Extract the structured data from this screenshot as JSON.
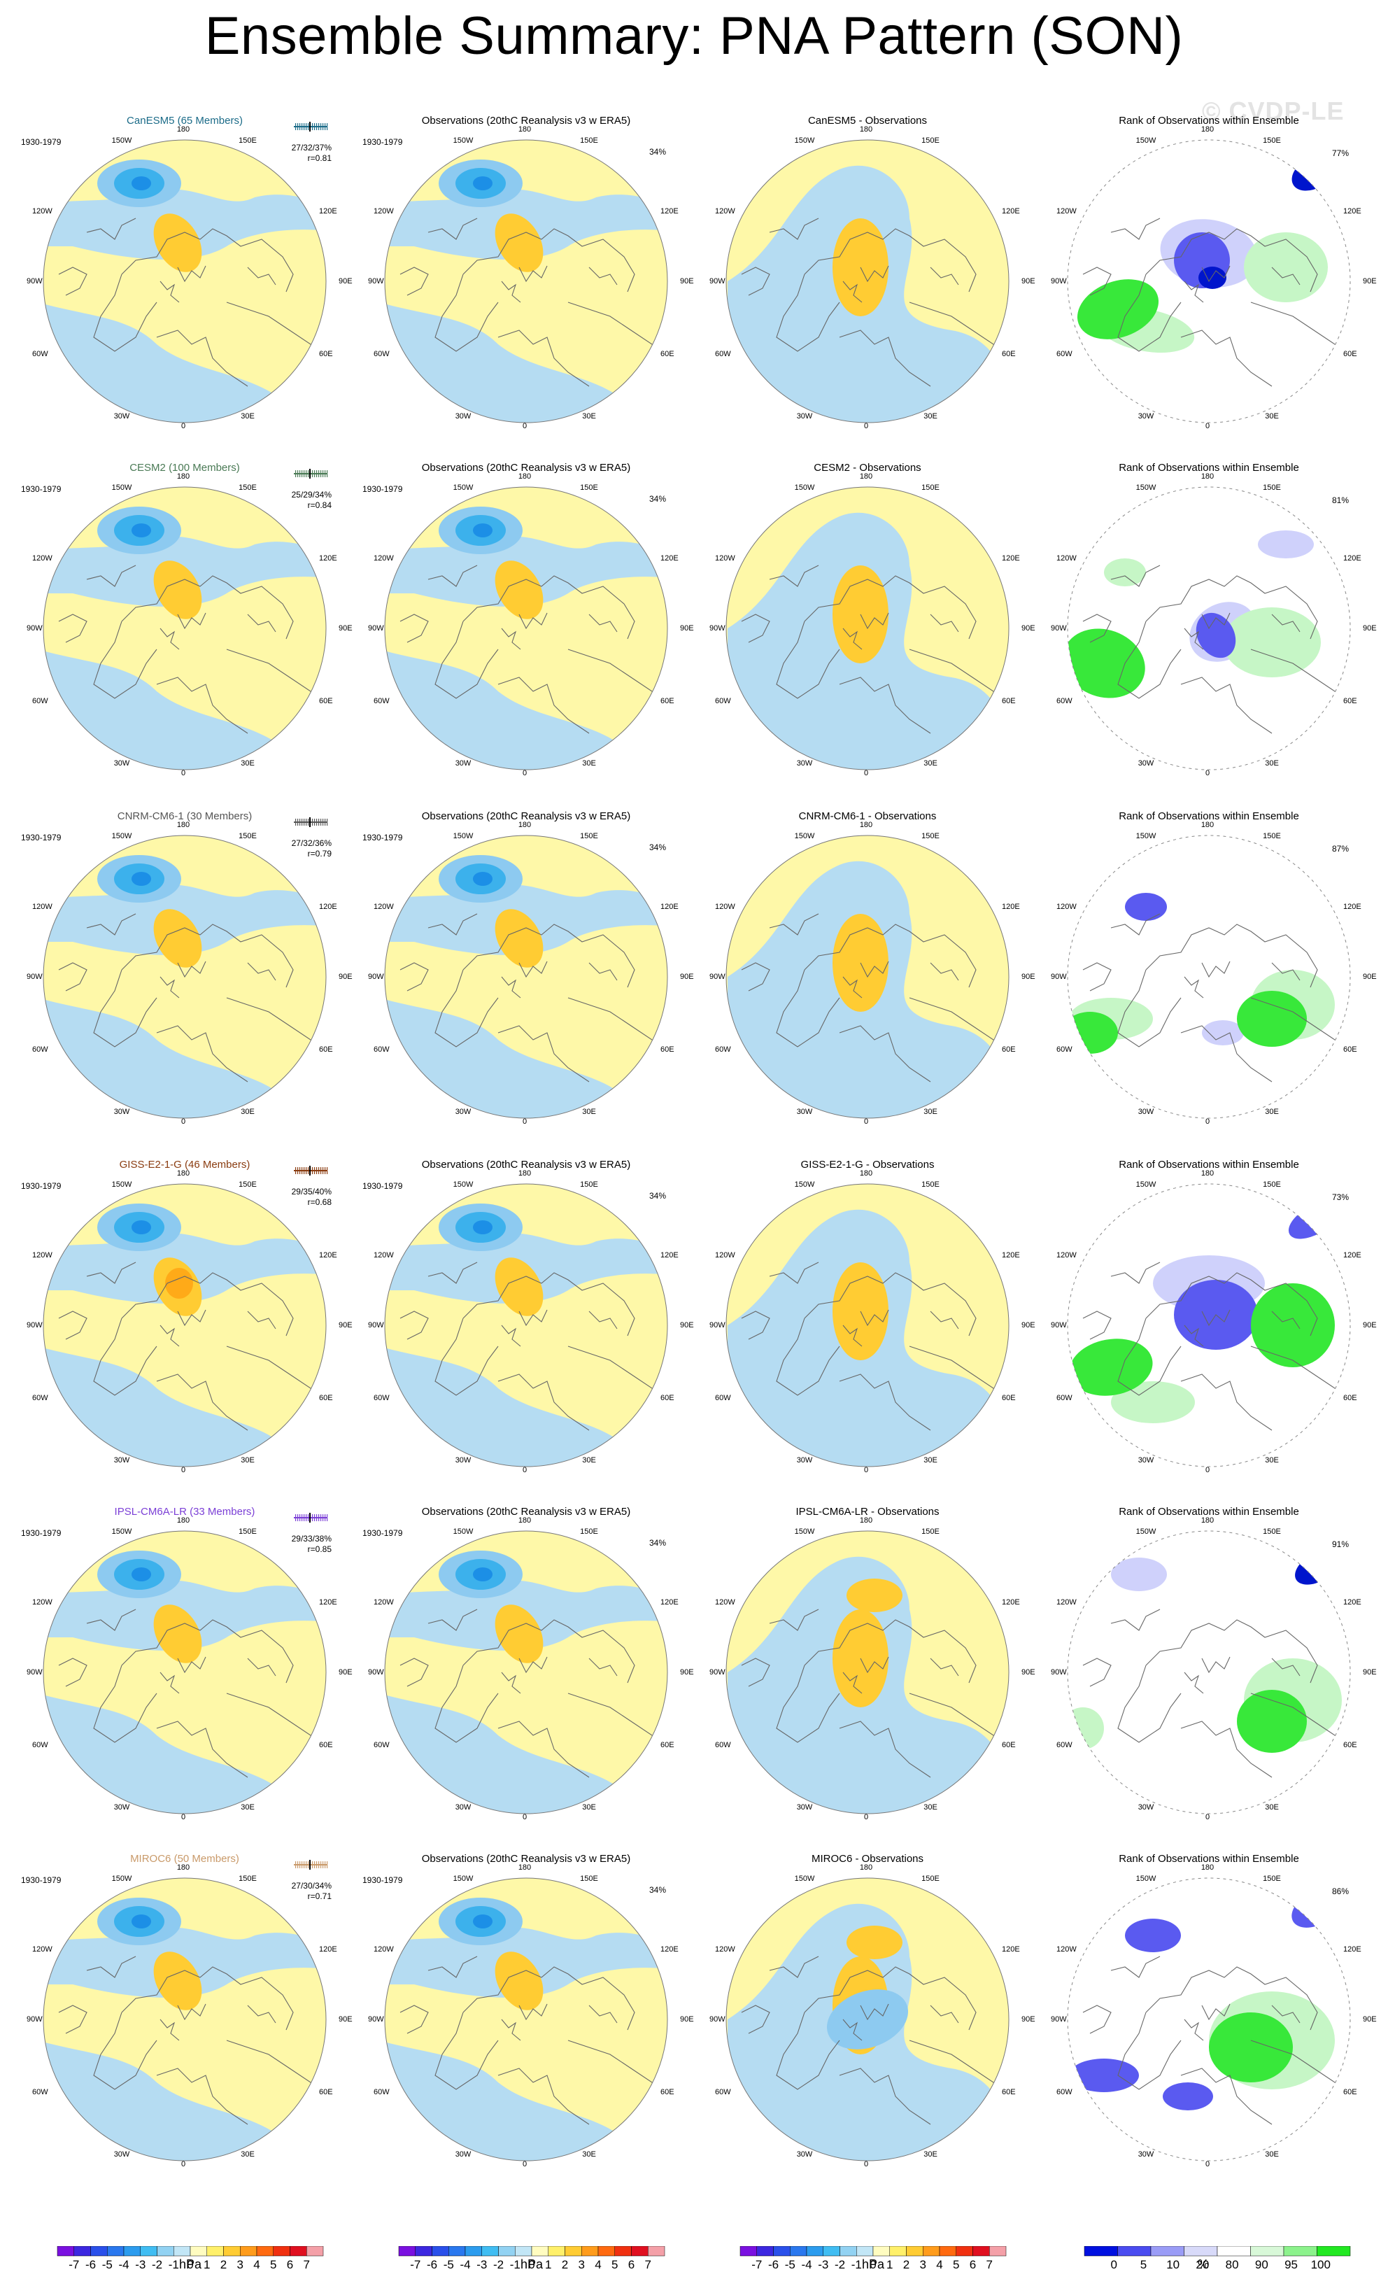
{
  "title": "Ensemble Summary: PNA Pattern (SON)",
  "watermark": "© CVDP-LE",
  "colors": {
    "neg1": "#b5dcf2",
    "neg2": "#8dcaf0",
    "neg3": "#3cb1ec",
    "neg4": "#1c8fe6",
    "pos1": "#fef8a8",
    "pos2": "#ffcc33",
    "pos3": "#ffaa18",
    "pos4": "#ff8a10",
    "rank_blue_dark": "#0015cc",
    "rank_blue": "#5a5af0",
    "rank_blue_light": "#cfd1fb",
    "rank_green": "#38e83a",
    "rank_green_light": "#c6f6c6",
    "land_line": "#666666"
  },
  "labels": {
    "period": "1930-1979",
    "obs_title": "Observations (20thC Reanalysis v3 w ERA5)",
    "rank_title": "Rank of Observations within Ensemble",
    "obs_pct": "34%",
    "lon_labels": {
      "top": "180",
      "left": "90W",
      "right": "90E",
      "bottom": "0",
      "tl": "150W",
      "tr": "150E",
      "ul": "120W",
      "ur": "120E",
      "ll": "60W",
      "lr": "60E",
      "bl": "30W",
      "br": "30E"
    }
  },
  "rows": [
    {
      "model_title": "CanESM5 (65 Members)",
      "model_color": "#1b6b88",
      "pct": "37%",
      "stats": "27/32/37%",
      "r": "r=0.81",
      "diff_title": "CanESM5 - Observations",
      "rank_pct": "77%"
    },
    {
      "model_title": "CESM2 (100 Members)",
      "model_color": "#4a7a55",
      "pct": "34%",
      "stats": "25/29/34%",
      "r": "r=0.84",
      "diff_title": "CESM2 - Observations",
      "rank_pct": "81%"
    },
    {
      "model_title": "CNRM-CM6-1 (30 Members)",
      "model_color": "#555555",
      "pct": "36%",
      "stats": "27/32/36%",
      "r": "r=0.79",
      "diff_title": "CNRM-CM6-1 - Observations",
      "rank_pct": "87%"
    },
    {
      "model_title": "GISS-E2-1-G (46 Members)",
      "model_color": "#8a3c10",
      "pct": "40%",
      "stats": "29/35/40%",
      "r": "r=0.68",
      "diff_title": "GISS-E2-1-G - Observations",
      "rank_pct": "73%"
    },
    {
      "model_title": "IPSL-CM6A-LR (33 Members)",
      "model_color": "#7b3fd6",
      "pct": "38%",
      "stats": "29/33/38%",
      "r": "r=0.85",
      "diff_title": "IPSL-CM6A-LR - Observations",
      "rank_pct": "91%"
    },
    {
      "model_title": "MIROC6 (50 Members)",
      "model_color": "#c99a6a",
      "pct": "34%",
      "stats": "27/30/34%",
      "r": "r=0.71",
      "diff_title": "MIROC6 - Observations",
      "rank_pct": "86%"
    }
  ],
  "colorbars": {
    "hpa": {
      "ticks": [
        "-7",
        "-6",
        "-5",
        "-4",
        "-3",
        "-2",
        "-1",
        "0",
        "1",
        "2",
        "3",
        "4",
        "5",
        "6",
        "7"
      ],
      "units": "hPa",
      "colors": [
        "#7a10e0",
        "#3c28e0",
        "#2a50ea",
        "#2a78ee",
        "#2c9cee",
        "#40bdf2",
        "#92d2f2",
        "#c2e6f6",
        "#fffcc0",
        "#fff06a",
        "#ffcc33",
        "#ff9c1c",
        "#ff6a10",
        "#f03010",
        "#e01020",
        "#f4a0a8"
      ]
    },
    "pct": {
      "ticks": [
        "0",
        "5",
        "10",
        "20",
        "80",
        "90",
        "95",
        "100"
      ],
      "units": "%",
      "colors": [
        "#0010e0",
        "#4a4cf0",
        "#9a9cf6",
        "#d8daf9",
        "#ffffff",
        "#d8f8d8",
        "#8cf28c",
        "#22e822"
      ]
    }
  }
}
